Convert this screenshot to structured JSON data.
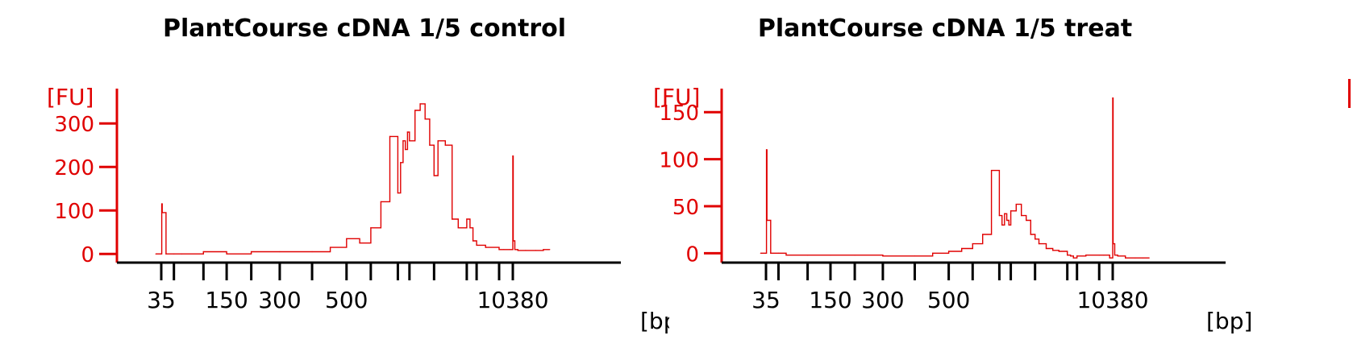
{
  "chart_data": [
    {
      "type": "line",
      "title": "PlantCourse cDNA 1/5 control",
      "ylabel": "[FU]",
      "xlabel": "[bp]",
      "yticks": [
        0,
        100,
        200,
        300
      ],
      "ylim": [
        -20,
        380
      ],
      "x_tick_labels": [
        "35",
        "150",
        "300",
        "500",
        "10380"
      ],
      "x_ladder_marks": [
        "35",
        "50",
        "100",
        "150",
        "200",
        "300",
        "400",
        "500",
        "700",
        "1000",
        "1500",
        "2000",
        "3000",
        "4000",
        "7000",
        "10380"
      ],
      "line_color": "#e00000",
      "series": [
        {
          "x": [
            "30",
            "35",
            "35.5",
            "36",
            "40",
            "50",
            "60",
            "100",
            "150",
            "200",
            "300",
            "400",
            "450",
            "500",
            "600",
            "700",
            "800",
            "900",
            "1000",
            "1100",
            "1200",
            "1300",
            "1400",
            "1500",
            "1600",
            "1700",
            "1800",
            "1900",
            "2000",
            "2100",
            "2300",
            "2500",
            "2700",
            "3000",
            "3300",
            "3600",
            "4000",
            "5000",
            "7000",
            "8000",
            "9500",
            "10380",
            "10500",
            "11000",
            "12000",
            "15000",
            "20000",
            "25000",
            "30000"
          ],
          "values": [
            0,
            0,
            115,
            95,
            0,
            0,
            0,
            5,
            0,
            5,
            5,
            5,
            15,
            35,
            25,
            60,
            120,
            270,
            140,
            210,
            260,
            240,
            280,
            260,
            330,
            345,
            310,
            250,
            180,
            260,
            250,
            80,
            60,
            80,
            60,
            30,
            20,
            15,
            10,
            10,
            10,
            225,
            30,
            10,
            8,
            8,
            8,
            10,
            10
          ]
        }
      ]
    },
    {
      "type": "line",
      "title": "PlantCourse cDNA 1/5 treat",
      "ylabel": "[FU]",
      "xlabel": "[bp]",
      "yticks": [
        0,
        50,
        100,
        150
      ],
      "ylim": [
        -10,
        175
      ],
      "x_tick_labels": [
        "35",
        "150",
        "300",
        "500",
        "10380"
      ],
      "x_ladder_marks": [
        "35",
        "50",
        "100",
        "150",
        "200",
        "300",
        "400",
        "500",
        "700",
        "1000",
        "1500",
        "2000",
        "3000",
        "4000",
        "7000",
        "10380"
      ],
      "line_color": "#e00000",
      "series": [
        {
          "x": [
            "30",
            "35",
            "35.5",
            "36",
            "40",
            "50",
            "60",
            "100",
            "150",
            "200",
            "300",
            "400",
            "450",
            "500",
            "600",
            "700",
            "800",
            "900",
            "1000",
            "1100",
            "1200",
            "1300",
            "1400",
            "1500",
            "1600",
            "1700",
            "1800",
            "1900",
            "2000",
            "2100",
            "2300",
            "2500",
            "2700",
            "3000",
            "3300",
            "3600",
            "4000",
            "5000",
            "7000",
            "8000",
            "9500",
            "10380",
            "10500",
            "11000",
            "12000",
            "15000",
            "20000",
            "25000",
            "30000"
          ],
          "values": [
            0,
            0,
            110,
            35,
            0,
            0,
            -2,
            -2,
            -2,
            -2,
            -3,
            -3,
            0,
            2,
            5,
            10,
            20,
            88,
            40,
            30,
            42,
            35,
            30,
            45,
            52,
            40,
            35,
            20,
            15,
            10,
            5,
            3,
            2,
            -2,
            -3,
            -5,
            -3,
            -2,
            -2,
            -2,
            -5,
            165,
            10,
            -2,
            -3,
            -5,
            -5,
            -5,
            -5
          ]
        }
      ]
    }
  ]
}
